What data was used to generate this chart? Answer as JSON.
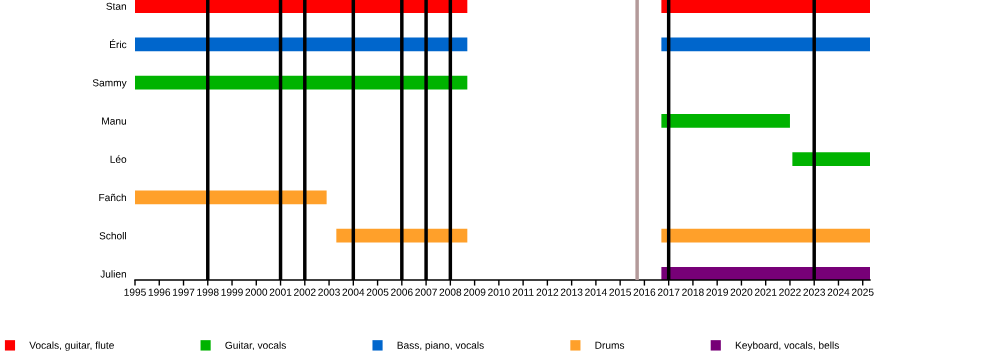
{
  "chart_data": {
    "type": "bar",
    "orientation": "horizontal",
    "categories": [
      "Stan",
      "Éric",
      "Sammy",
      "Manu",
      "Léo",
      "Fañch",
      "Scholl",
      "Julien"
    ],
    "series": [
      {
        "name": "Vocals, guitar, flute",
        "color": "#ff0000",
        "base": [
          1995,
          null,
          null,
          null,
          null,
          null,
          null,
          null
        ],
        "values": [
          13.7,
          null,
          null,
          null,
          null,
          null,
          null,
          null
        ]
      },
      {
        "name": "Guitar, vocals",
        "color": "#00b300",
        "base": [
          null,
          null,
          1995,
          2016.7,
          2022.1,
          null,
          null,
          null
        ],
        "values": [
          null,
          null,
          13.7,
          5.3,
          3.2,
          null,
          null,
          null
        ]
      },
      {
        "name": "Bass, piano, vocals",
        "color": "#0066cc",
        "base": [
          null,
          1995,
          null,
          null,
          null,
          null,
          null,
          null
        ],
        "values": [
          null,
          13.7,
          null,
          null,
          null,
          null,
          null,
          null
        ]
      },
      {
        "name": "Drums",
        "color": "#ffa02a",
        "base": [
          null,
          null,
          null,
          null,
          null,
          1995,
          2003.3,
          null
        ],
        "values": [
          null,
          null,
          null,
          null,
          null,
          7.9,
          5.4,
          null
        ]
      },
      {
        "name": "Keyboard, vocals, bells",
        "color": "#770077",
        "base": [
          null,
          null,
          null,
          null,
          null,
          null,
          null,
          2016.7
        ],
        "values": [
          null,
          null,
          null,
          null,
          null,
          null,
          null,
          8.6
        ]
      },
      {
        "color": "#ff0000",
        "base": [
          2016.7,
          null,
          null,
          null,
          null,
          null,
          null,
          null
        ],
        "values": [
          8.6,
          null,
          null,
          null,
          null,
          null,
          null,
          null
        ]
      },
      {
        "color": "#0066cc",
        "base": [
          null,
          2016.7,
          null,
          null,
          null,
          null,
          null,
          null
        ],
        "values": [
          null,
          8.6,
          null,
          null,
          null,
          null,
          null,
          null
        ]
      },
      {
        "color": "#ffa02a",
        "base": [
          null,
          null,
          null,
          null,
          null,
          null,
          2016.7,
          null
        ],
        "values": [
          null,
          null,
          null,
          null,
          null,
          null,
          8.6,
          null
        ]
      }
    ],
    "xlim": [
      1995,
      2025.3
    ],
    "xticks": [
      1995,
      1996,
      1997,
      1998,
      1999,
      2000,
      2001,
      2002,
      2003,
      2004,
      2005,
      2006,
      2007,
      2008,
      2009,
      2010,
      2011,
      2012,
      2013,
      2014,
      2015,
      2016,
      2017,
      2018,
      2019,
      2020,
      2021,
      2022,
      2023,
      2024,
      2025
    ],
    "ref_lines": [
      {
        "axis": "x",
        "value": 1998,
        "color": "#000000"
      },
      {
        "axis": "x",
        "value": 2001,
        "color": "#000000"
      },
      {
        "axis": "x",
        "value": 2002,
        "color": "#000000"
      },
      {
        "axis": "x",
        "value": 2004,
        "color": "#000000"
      },
      {
        "axis": "x",
        "value": 2006,
        "color": "#000000"
      },
      {
        "axis": "x",
        "value": 2007,
        "color": "#000000"
      },
      {
        "axis": "x",
        "value": 2008,
        "color": "#000000"
      },
      {
        "axis": "x",
        "value": 2017,
        "color": "#000000"
      },
      {
        "axis": "x",
        "value": 2023,
        "color": "#000000"
      },
      {
        "axis": "x",
        "value": 2015.7,
        "color": "#b39a9a"
      }
    ],
    "grid": false,
    "legend": "bottom"
  }
}
